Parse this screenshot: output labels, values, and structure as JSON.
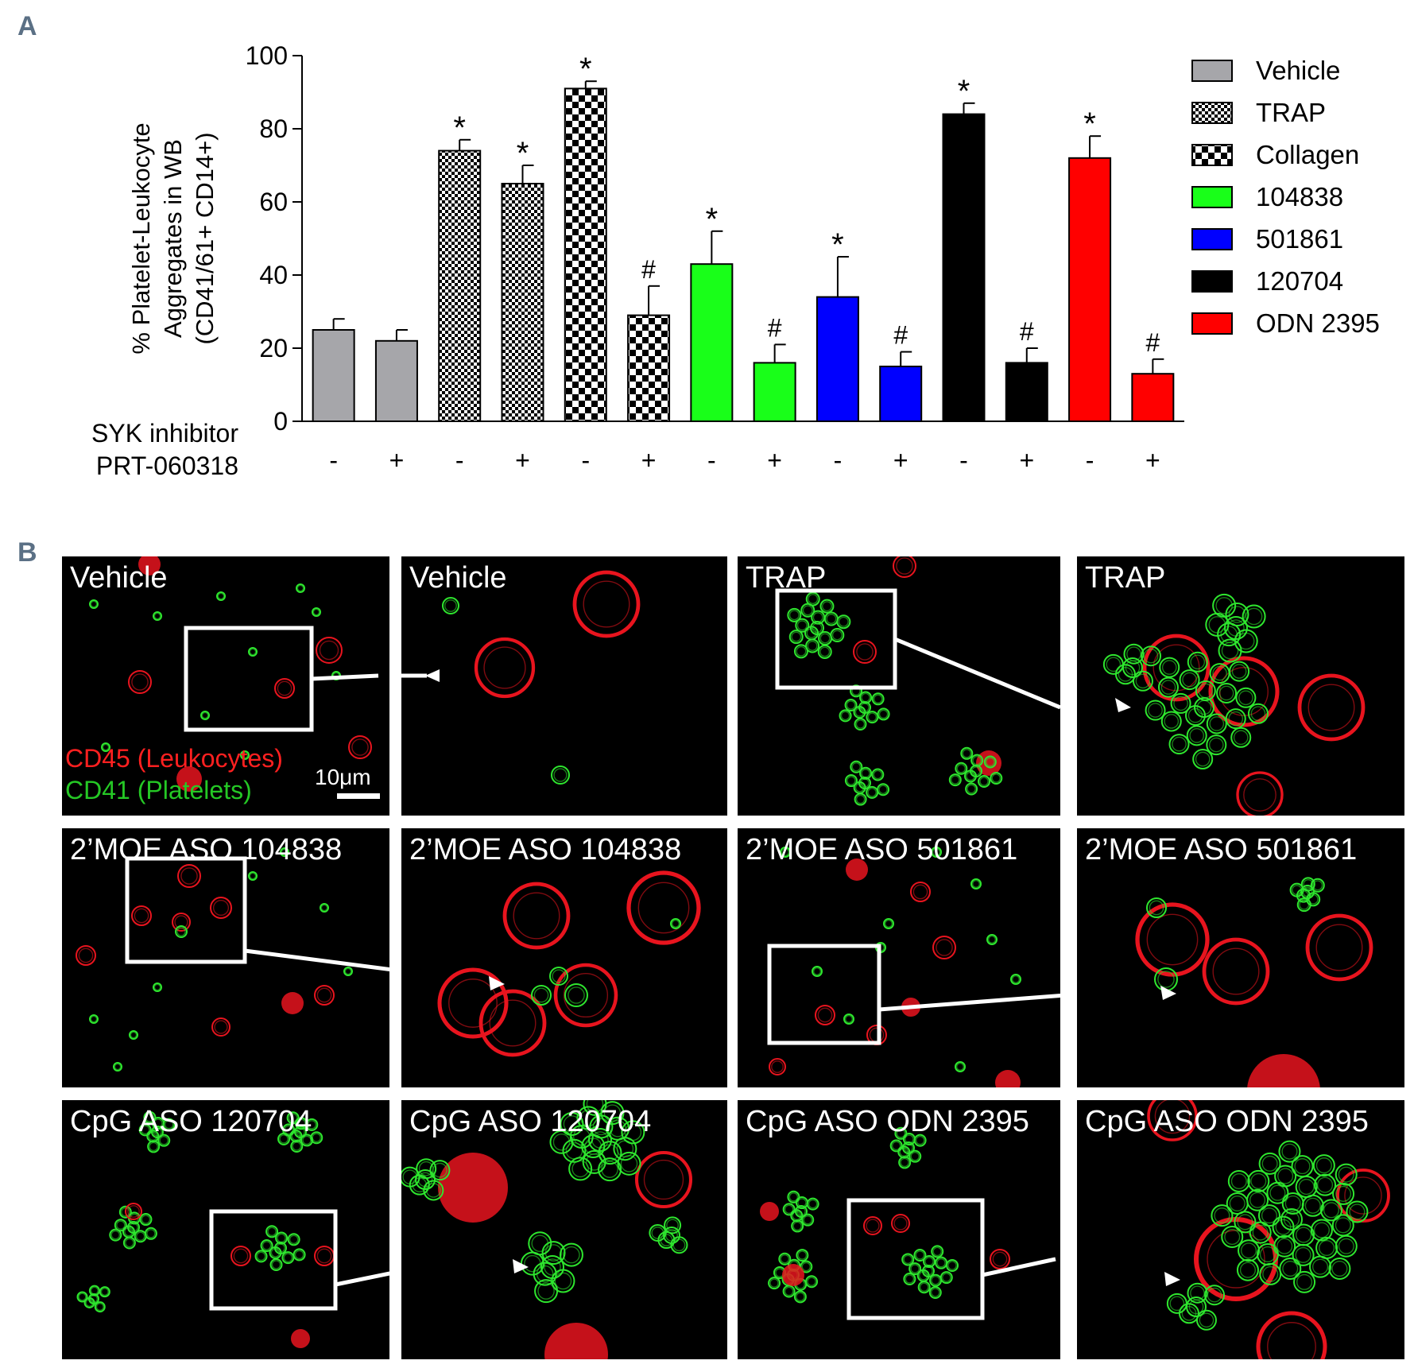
{
  "panel_a_letter": "A",
  "panel_b_letter": "B",
  "chart_data": {
    "type": "bar",
    "ylabel_lines": [
      "% Platelet-Leukocyte",
      "Aggregates in WB",
      "(CD41/61+ CD14+)"
    ],
    "ylim": [
      0,
      100
    ],
    "yticks": [
      0,
      20,
      40,
      60,
      80,
      100
    ],
    "treatment_row_label": [
      "SYK inhibitor",
      "PRT-060318"
    ],
    "categories": [
      "-",
      "+",
      "-",
      "+",
      "-",
      "+",
      "-",
      "+",
      "-",
      "+",
      "-",
      "+",
      "-",
      "+"
    ],
    "values": [
      25,
      22,
      74,
      65,
      91,
      29,
      43,
      16,
      34,
      15,
      84,
      16,
      72,
      13
    ],
    "errors": [
      3,
      3,
      3,
      5,
      2,
      8,
      9,
      5,
      11,
      4,
      3,
      4,
      6,
      4
    ],
    "annotations": [
      "",
      "",
      "*",
      "*",
      "*",
      "#",
      "*",
      "#",
      "*",
      "#",
      "*",
      "#",
      "*",
      "#"
    ],
    "bar_groups": [
      "Vehicle",
      "Vehicle",
      "TRAP",
      "TRAP",
      "Collagen",
      "Collagen",
      "104838",
      "104838",
      "501861",
      "501861",
      "120704",
      "120704",
      "ODN 2395",
      "ODN 2395"
    ],
    "legend": [
      {
        "name": "Vehicle",
        "color": "#a6a6aa",
        "pattern": "solid"
      },
      {
        "name": "TRAP",
        "color": "#000000",
        "pattern": "fine-check"
      },
      {
        "name": "Collagen",
        "color": "#000000",
        "pattern": "coarse-check"
      },
      {
        "name": "104838",
        "color": "#19ff19",
        "pattern": "solid"
      },
      {
        "name": "501861",
        "color": "#0000ff",
        "pattern": "solid"
      },
      {
        "name": "120704",
        "color": "#000000",
        "pattern": "solid"
      },
      {
        "name": "ODN 2395",
        "color": "#ff0000",
        "pattern": "solid"
      }
    ],
    "legend_position": "right",
    "grid": false
  },
  "micrographs": {
    "tiles": [
      {
        "label": "Vehicle",
        "kind": "overview"
      },
      {
        "label": "Vehicle",
        "kind": "zoom"
      },
      {
        "label": "TRAP",
        "kind": "overview"
      },
      {
        "label": "TRAP",
        "kind": "zoom"
      },
      {
        "label": "2’MOE ASO 104838",
        "kind": "overview"
      },
      {
        "label": "2’MOE ASO 104838",
        "kind": "zoom"
      },
      {
        "label": "2’MOE ASO 501861",
        "kind": "overview"
      },
      {
        "label": "2’MOE ASO 501861",
        "kind": "zoom"
      },
      {
        "label": "CpG ASO 120704",
        "kind": "overview"
      },
      {
        "label": "CpG ASO 120704",
        "kind": "zoom"
      },
      {
        "label": "CpG ASO ODN 2395",
        "kind": "overview"
      },
      {
        "label": "CpG ASO ODN 2395",
        "kind": "zoom"
      }
    ],
    "stain_legend_red": "CD45 (Leukocytes)",
    "stain_legend_green": "CD41 (Platelets)",
    "scale_bar_label": "10μm",
    "colors": {
      "leukocyte": "#e8141e",
      "platelet": "#2ee62e",
      "background": "#000000",
      "frame": "#ffffff"
    }
  }
}
